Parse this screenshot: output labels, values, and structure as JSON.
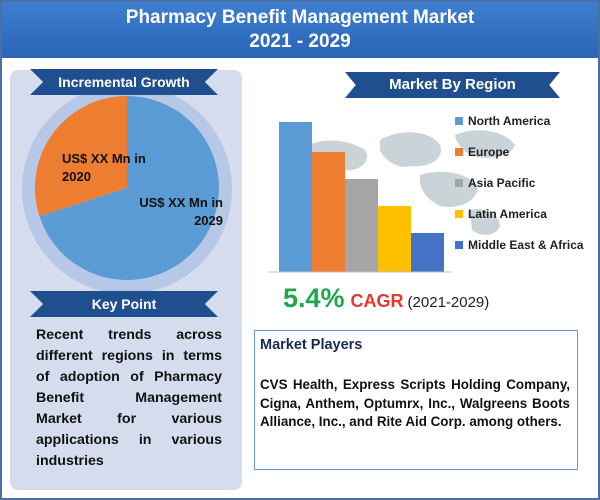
{
  "header": {
    "title_line1": "Pharmacy Benefit Management Market",
    "title_line2": "2021 - 2029"
  },
  "incremental_growth": {
    "heading": "Incremental Growth",
    "label_2020": "US$ XX Mn in 2020",
    "label_2029": "US$ XX Mn in 2029"
  },
  "key_point": {
    "heading": "Key Point",
    "text": "Recent trends across different regions in terms of adoption of Pharmacy Benefit Management Market for various applications in various industries"
  },
  "market_by_region": {
    "heading": "Market By Region"
  },
  "cagr": {
    "value": "5.4%",
    "label": "CAGR",
    "range": "(2021-2029)"
  },
  "market_players": {
    "heading": "Market Players",
    "text": "CVS Health, Express Scripts Holding Company, Cigna, Anthem, Optumrx, Inc., Walgreens Boots Alliance, Inc., and Rite Aid Corp. among others."
  },
  "colors": {
    "header": "#2f6fc4",
    "north_america": "#5b9bd5",
    "europe": "#ed7d31",
    "asia_pacific": "#a5a5a5",
    "latin_america": "#ffc000",
    "middle_east_africa": "#4472c4",
    "pie_2020": "#ed7d31",
    "pie_2029": "#5b9bd5",
    "cagr_value": "#1fa84a",
    "cagr_label": "#e23b2e"
  },
  "chart_data": [
    {
      "type": "pie",
      "title": "Incremental Growth",
      "slices": [
        {
          "label": "US$ XX Mn in 2020",
          "value": 30
        },
        {
          "label": "US$ XX Mn in 2029",
          "value": 70
        }
      ]
    },
    {
      "type": "bar",
      "title": "Market By Region",
      "categories": [
        "North America",
        "Europe",
        "Asia Pacific",
        "Latin America",
        "Middle East & Africa"
      ],
      "values": [
        100,
        80,
        62,
        44,
        26
      ],
      "ylim": [
        0,
        100
      ],
      "legend": "right",
      "grid": false
    }
  ]
}
